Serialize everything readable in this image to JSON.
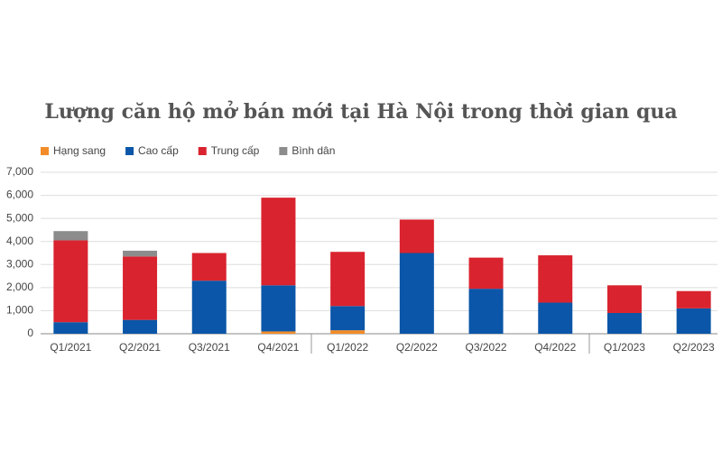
{
  "chart_data": {
    "type": "stacked-bar",
    "title": "Lượng căn hộ mở bán mới tại Hà Nội trong thời gian qua",
    "categories": [
      "Q1/2021",
      "Q2/2021",
      "Q3/2021",
      "Q4/2021",
      "Q1/2022",
      "Q2/2022",
      "Q3/2022",
      "Q4/2022",
      "Q1/2023",
      "Q2/2023"
    ],
    "series": [
      {
        "name": "Hạng sang",
        "color": "#f28c28",
        "values": [
          0,
          0,
          0,
          100,
          150,
          0,
          0,
          0,
          0,
          0
        ]
      },
      {
        "name": "Cao cấp",
        "color": "#0b56a8",
        "values": [
          500,
          600,
          2300,
          2000,
          1050,
          3500,
          1950,
          1350,
          900,
          1100
        ]
      },
      {
        "name": "Trung cấp",
        "color": "#d9232e",
        "values": [
          3550,
          2750,
          1200,
          3800,
          2350,
          1450,
          1350,
          2050,
          1200,
          750
        ]
      },
      {
        "name": "Bình dân",
        "color": "#8c8c8c",
        "values": [
          400,
          250,
          0,
          0,
          0,
          0,
          0,
          0,
          0,
          0
        ]
      }
    ],
    "ylim": [
      0,
      7000
    ],
    "yticks": [
      0,
      {
        "value": 1000,
        "label": "1,000"
      },
      {
        "value": 2000,
        "label": "2,000"
      },
      {
        "value": 3000,
        "label": "3,000"
      },
      {
        "value": 4000,
        "label": "4,000"
      },
      {
        "value": 5000,
        "label": "5,000"
      },
      {
        "value": 6000,
        "label": "6,000"
      },
      {
        "value": 7000,
        "label": "7,000"
      }
    ],
    "grid": true
  }
}
